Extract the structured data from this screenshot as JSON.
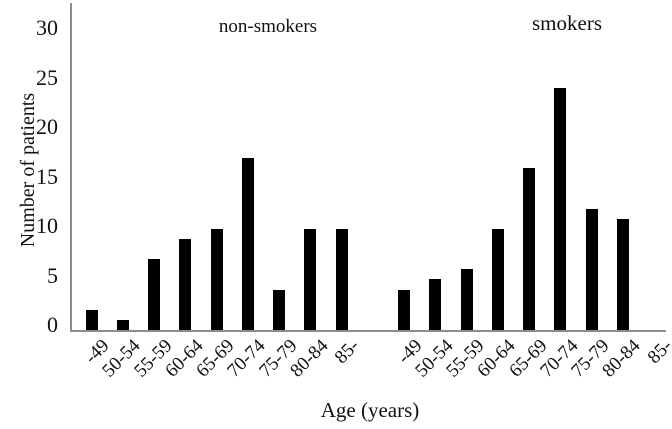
{
  "chart_data": {
    "type": "bar",
    "title": "",
    "categories": [
      "-49",
      "50-54",
      "55-59",
      "60-64",
      "65-69",
      "70-74",
      "75-79",
      "80-84",
      "85-"
    ],
    "series": [
      {
        "name": "non-smokers",
        "values": [
          2,
          1,
          7,
          9,
          10,
          17,
          4,
          10,
          10
        ]
      },
      {
        "name": "smokers",
        "values": [
          4,
          5,
          6,
          10,
          16,
          24,
          12,
          11,
          0
        ]
      }
    ],
    "xlabel": "Age (years)",
    "ylabel": "Number of patients",
    "yticks": [
      0,
      5,
      10,
      15,
      20,
      25,
      30
    ],
    "ylim": [
      0,
      30
    ],
    "grid": "off",
    "legend_position": "none",
    "annotations": [
      "non-smokers",
      "smokers"
    ],
    "bar_color": "#000000",
    "axis_color": "#8c8c8c",
    "text_color": "#111111"
  }
}
